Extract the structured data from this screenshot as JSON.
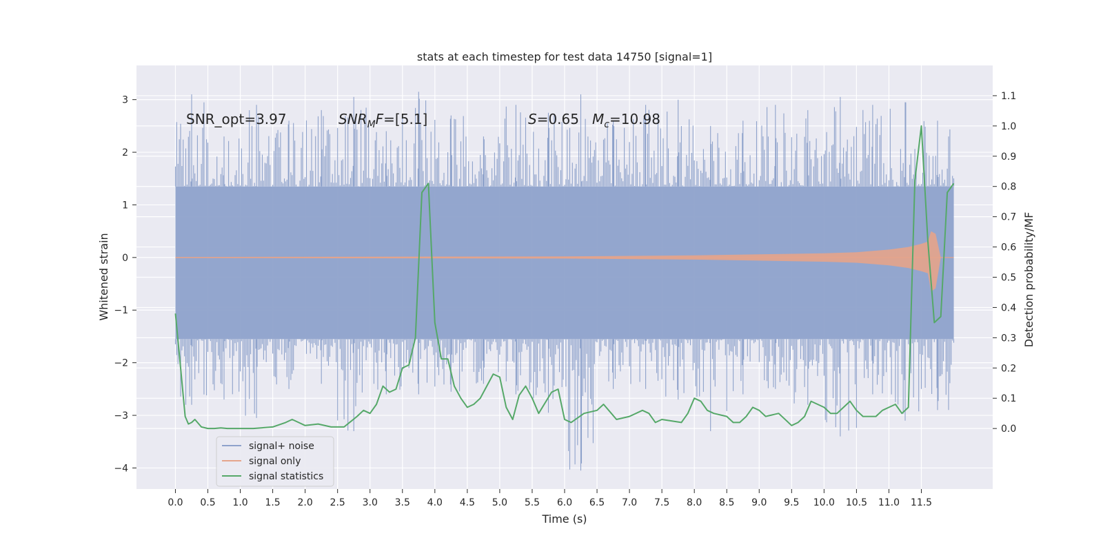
{
  "chart_data": {
    "type": "line",
    "title": "stats at each timestep for test data 14750 [signal=1]",
    "xlabel": "Time (s)",
    "ylabel": "Whitened strain",
    "ylabel_right": "Detection probability/MF",
    "xlim": [
      -0.6,
      12.6
    ],
    "ylim": [
      -4.4,
      3.65
    ],
    "ylim_right": [
      -0.2,
      1.2
    ],
    "x_ticks": [
      "0.0",
      "0.5",
      "1.0",
      "1.5",
      "2.0",
      "2.5",
      "3.0",
      "3.5",
      "4.0",
      "4.5",
      "5.0",
      "5.5",
      "6.0",
      "6.5",
      "7.0",
      "7.5",
      "8.0",
      "8.5",
      "9.0",
      "9.5",
      "10.0",
      "10.5",
      "11.0",
      "11.5"
    ],
    "y_ticks": [
      "−4",
      "−3",
      "−2",
      "−1",
      "0",
      "1",
      "2",
      "3"
    ],
    "y_ticks_right": [
      "0.0",
      "0.1",
      "0.2",
      "0.3",
      "0.4",
      "0.5",
      "0.6",
      "0.7",
      "0.8",
      "0.9",
      "1.0",
      "1.1"
    ],
    "grid": true,
    "legend_position": "lower-left",
    "annotations": [
      {
        "parts": [
          {
            "t": "SNR_opt=3.97",
            "style": "normal"
          }
        ]
      },
      {
        "parts": [
          {
            "t": "SNR",
            "style": "italic"
          },
          {
            "t": "M",
            "style": "italic-sub"
          },
          {
            "t": "F",
            "style": "italic"
          },
          {
            "t": "=[5.1]",
            "style": "normal"
          }
        ]
      },
      {
        "parts": [
          {
            "t": "S",
            "style": "italic"
          },
          {
            "t": "=0.65",
            "style": "normal"
          }
        ]
      },
      {
        "parts": [
          {
            "t": "M",
            "style": "italic"
          },
          {
            "t": "c",
            "style": "italic-sub"
          },
          {
            "t": "=10.98",
            "style": "normal"
          }
        ]
      }
    ],
    "series": [
      {
        "name": "signal+ noise",
        "color": "#8ea2cb",
        "axis": "left",
        "x_range": [
          0.0,
          12.0
        ],
        "band_upper": 1.35,
        "band_lower": -1.55,
        "spike_max": [
          3.1,
          2.3,
          2.9,
          2.6,
          2.8,
          3.05,
          2.4,
          3.15,
          2.7,
          2.3,
          2.9,
          2.75,
          3.1,
          2.6,
          2.9,
          3.0,
          2.5,
          2.6,
          2.9,
          2.8,
          3.05,
          2.9,
          2.95,
          2.6
        ],
        "spike_min": [
          -2.8,
          -2.7,
          -3.05,
          -2.5,
          -2.4,
          -3.3,
          -2.6,
          -2.6,
          -2.55,
          -2.4,
          -2.6,
          -2.95,
          -4.05,
          -2.5,
          -2.5,
          -2.7,
          -3.3,
          -2.6,
          -2.5,
          -2.8,
          -3.4,
          -2.6,
          -3.1,
          -2.9
        ]
      },
      {
        "name": "signal only",
        "color": "#e5a48b",
        "axis": "left",
        "x": [
          0.0,
          6.0,
          8.0,
          9.0,
          10.0,
          10.5,
          11.0,
          11.3,
          11.5,
          11.6,
          11.65,
          11.72,
          11.8,
          12.0
        ],
        "amplitude": [
          0.01,
          0.02,
          0.04,
          0.06,
          0.08,
          0.1,
          0.15,
          0.2,
          0.26,
          0.3,
          0.5,
          0.45,
          0.0,
          0.0
        ]
      },
      {
        "name": "signal statistics",
        "color": "#55a868",
        "axis": "right",
        "x": [
          0.0,
          0.08,
          0.15,
          0.2,
          0.25,
          0.3,
          0.4,
          0.5,
          0.6,
          0.7,
          0.8,
          1.0,
          1.2,
          1.5,
          1.7,
          1.8,
          1.9,
          2.0,
          2.2,
          2.4,
          2.6,
          2.8,
          2.9,
          3.0,
          3.1,
          3.2,
          3.3,
          3.4,
          3.5,
          3.6,
          3.7,
          3.8,
          3.9,
          4.0,
          4.1,
          4.2,
          4.3,
          4.4,
          4.5,
          4.6,
          4.7,
          4.8,
          4.9,
          5.0,
          5.1,
          5.2,
          5.3,
          5.4,
          5.5,
          5.6,
          5.8,
          5.9,
          6.0,
          6.1,
          6.3,
          6.5,
          6.6,
          6.8,
          7.0,
          7.2,
          7.3,
          7.4,
          7.5,
          7.8,
          7.9,
          8.0,
          8.1,
          8.2,
          8.3,
          8.5,
          8.6,
          8.7,
          8.8,
          8.9,
          9.0,
          9.1,
          9.3,
          9.5,
          9.6,
          9.7,
          9.8,
          9.9,
          10.0,
          10.1,
          10.2,
          10.3,
          10.4,
          10.5,
          10.6,
          10.8,
          10.9,
          11.0,
          11.1,
          11.2,
          11.3,
          11.4,
          11.5,
          11.6,
          11.7,
          11.8,
          11.9,
          12.0
        ],
        "values": [
          0.38,
          0.2,
          0.04,
          0.015,
          0.02,
          0.03,
          0.005,
          0.0,
          0.0,
          0.002,
          0.0,
          0.0,
          0.0,
          0.005,
          0.02,
          0.03,
          0.02,
          0.01,
          0.015,
          0.005,
          0.005,
          0.04,
          0.06,
          0.05,
          0.08,
          0.14,
          0.12,
          0.13,
          0.2,
          0.21,
          0.3,
          0.78,
          0.81,
          0.35,
          0.23,
          0.23,
          0.14,
          0.1,
          0.07,
          0.08,
          0.1,
          0.14,
          0.18,
          0.17,
          0.07,
          0.03,
          0.11,
          0.14,
          0.1,
          0.05,
          0.12,
          0.13,
          0.03,
          0.02,
          0.05,
          0.06,
          0.08,
          0.03,
          0.04,
          0.06,
          0.05,
          0.02,
          0.03,
          0.02,
          0.05,
          0.1,
          0.09,
          0.06,
          0.05,
          0.04,
          0.02,
          0.02,
          0.04,
          0.07,
          0.06,
          0.04,
          0.05,
          0.01,
          0.02,
          0.04,
          0.09,
          0.08,
          0.07,
          0.05,
          0.05,
          0.07,
          0.09,
          0.06,
          0.04,
          0.04,
          0.06,
          0.07,
          0.08,
          0.05,
          0.07,
          0.82,
          1.0,
          0.62,
          0.35,
          0.37,
          0.78,
          0.81
        ]
      }
    ]
  }
}
